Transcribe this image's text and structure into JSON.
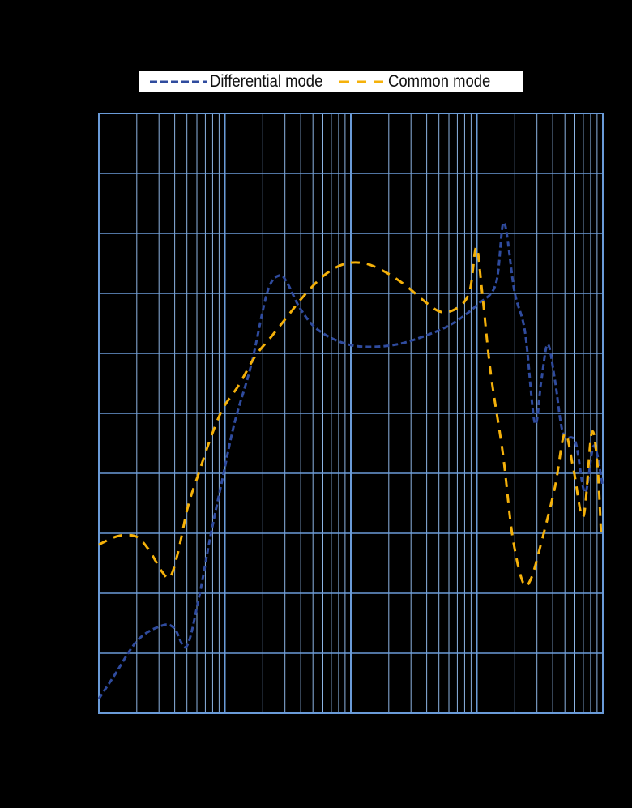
{
  "chart_data": {
    "type": "line",
    "title": "",
    "xlabel": "",
    "ylabel": "",
    "x_scale": "log",
    "xlim": [
      1,
      10000
    ],
    "ylim": [
      0,
      10
    ],
    "grid": true,
    "legend_position": "top",
    "series": [
      {
        "name": "Differential mode",
        "color": "#2F4B9E",
        "line_style": "dashed",
        "x": [
          1,
          1.31,
          2.04,
          3.17,
          3.96,
          4.95,
          6.18,
          7.72,
          9.6,
          12.0,
          16.2,
          21.8,
          27.2,
          31.5,
          39.3,
          52.8,
          82.4,
          129,
          233,
          421,
          656,
          1023,
          1416,
          1641,
          1990,
          2415,
          2884,
          3246,
          3654,
          4177,
          4843,
          6046,
          7225,
          8494,
          10000
        ],
        "y": [
          0.24,
          0.61,
          1.22,
          1.46,
          1.42,
          1.11,
          1.89,
          2.97,
          3.92,
          4.86,
          5.81,
          7.03,
          7.3,
          7.16,
          6.76,
          6.42,
          6.19,
          6.11,
          6.15,
          6.32,
          6.51,
          6.82,
          7.16,
          8.18,
          7.03,
          6.35,
          4.84,
          5.54,
          6.15,
          5.54,
          4.66,
          4.53,
          3.68,
          4.46,
          3.78
        ]
      },
      {
        "name": "Common mode",
        "color": "#F5B10A",
        "line_style": "dashed",
        "x": [
          1,
          1.31,
          1.63,
          2.04,
          2.54,
          3.17,
          3.68,
          4.27,
          5.1,
          6.18,
          7.72,
          9.6,
          12.9,
          17.4,
          23.4,
          31.5,
          42.4,
          61.3,
          88.6,
          129,
          186,
          269,
          389,
          522,
          701,
          875,
          990,
          1100,
          1287,
          1611,
          1912,
          2313,
          2675,
          3246,
          4177,
          4989,
          5868,
          7015,
          8128,
          9016,
          9707
        ],
        "y": [
          2.81,
          2.93,
          2.97,
          2.93,
          2.7,
          2.36,
          2.27,
          2.7,
          3.45,
          3.99,
          4.59,
          5.07,
          5.47,
          5.95,
          6.28,
          6.62,
          6.96,
          7.3,
          7.49,
          7.5,
          7.36,
          7.14,
          6.86,
          6.69,
          6.76,
          7.03,
          7.77,
          7.03,
          5.68,
          4.32,
          2.97,
          2.19,
          2.23,
          2.84,
          3.78,
          4.66,
          4.05,
          3.28,
          4.66,
          4.19,
          2.95
        ]
      }
    ]
  }
}
